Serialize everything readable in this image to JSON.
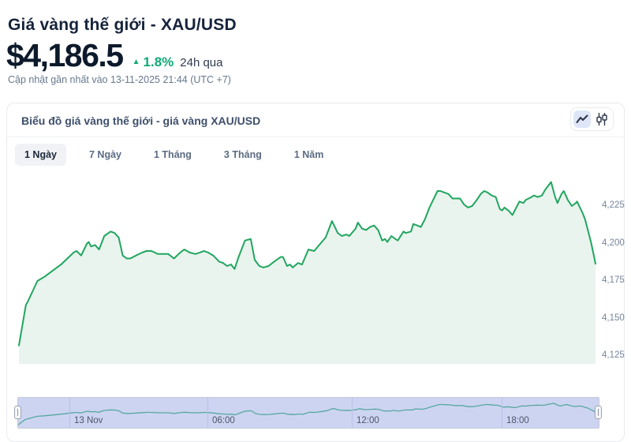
{
  "header": {
    "title": "Giá vàng thế giới - XAU/USD",
    "price": "$4,186.5",
    "change": "1.8%",
    "period": "24h qua",
    "updated": "Cập nhật gần nhất vào 13-11-2025 21:44 (UTC +7)"
  },
  "icons": {
    "up_arrow": "▲"
  },
  "chart_header": {
    "title": "Biểu đồ giá vàng thế giới - giá vàng XAU/USD"
  },
  "tabs": [
    {
      "id": "1d",
      "label": "1 Ngày",
      "active": true
    },
    {
      "id": "7d",
      "label": "7 Ngày",
      "active": false
    },
    {
      "id": "1m",
      "label": "1 Tháng",
      "active": false
    },
    {
      "id": "3m",
      "label": "3 Tháng",
      "active": false
    },
    {
      "id": "1y",
      "label": "1 Năm",
      "active": false
    }
  ],
  "colors": {
    "accent_green": "#10a974",
    "title_dark": "#16233b",
    "chart_line": "#21a55f",
    "chart_fill": "#e9f4ee",
    "navigator_bg": "#cdd4f1",
    "navigator_line": "#58a8a1",
    "navigator_grid": "#b9c0e4",
    "active_tab_bg": "#f1f2f5",
    "toggle_active_bg": "#dfe6f8",
    "icon_dark": "#2b3547"
  },
  "chart_data": {
    "type": "area",
    "title": "Biểu đồ giá vàng thế giới - giá vàng XAU/USD",
    "series_name": "XAU/USD",
    "xlabel": "",
    "ylabel": "USD",
    "grid": false,
    "y_axis_position": "right",
    "ylim": [
      4120,
      4245
    ],
    "y_ticks": [
      4125,
      4150,
      4175,
      4200,
      4225
    ],
    "x_axis_labels": [
      {
        "label": "13 Nov",
        "pos": 0.088
      },
      {
        "label": "06:00",
        "pos": 0.326
      },
      {
        "label": "12:00",
        "pos": 0.575
      },
      {
        "label": "18:00",
        "pos": 0.833
      }
    ],
    "points": [
      [
        0,
        4132
      ],
      [
        0.012,
        4159
      ],
      [
        0.015,
        4161
      ],
      [
        0.032,
        4175
      ],
      [
        0.045,
        4178
      ],
      [
        0.059,
        4182
      ],
      [
        0.073,
        4186
      ],
      [
        0.084,
        4190
      ],
      [
        0.095,
        4194
      ],
      [
        0.1,
        4195
      ],
      [
        0.108,
        4192
      ],
      [
        0.118,
        4200
      ],
      [
        0.121,
        4201
      ],
      [
        0.125,
        4198
      ],
      [
        0.132,
        4199
      ],
      [
        0.139,
        4196
      ],
      [
        0.148,
        4205
      ],
      [
        0.159,
        4208
      ],
      [
        0.166,
        4207
      ],
      [
        0.173,
        4204
      ],
      [
        0.18,
        4192
      ],
      [
        0.187,
        4190
      ],
      [
        0.193,
        4190
      ],
      [
        0.203,
        4192
      ],
      [
        0.214,
        4194
      ],
      [
        0.221,
        4195
      ],
      [
        0.23,
        4195
      ],
      [
        0.241,
        4193
      ],
      [
        0.25,
        4193
      ],
      [
        0.259,
        4193
      ],
      [
        0.269,
        4190
      ],
      [
        0.277,
        4193
      ],
      [
        0.283,
        4195
      ],
      [
        0.287,
        4196
      ],
      [
        0.296,
        4194
      ],
      [
        0.306,
        4193
      ],
      [
        0.314,
        4194
      ],
      [
        0.321,
        4195
      ],
      [
        0.328,
        4194
      ],
      [
        0.337,
        4192
      ],
      [
        0.347,
        4188
      ],
      [
        0.354,
        4187
      ],
      [
        0.361,
        4185
      ],
      [
        0.368,
        4186
      ],
      [
        0.374,
        4183
      ],
      [
        0.381,
        4191
      ],
      [
        0.392,
        4202
      ],
      [
        0.402,
        4203
      ],
      [
        0.409,
        4189
      ],
      [
        0.417,
        4185
      ],
      [
        0.424,
        4184
      ],
      [
        0.433,
        4185
      ],
      [
        0.443,
        4188
      ],
      [
        0.454,
        4191
      ],
      [
        0.458,
        4191
      ],
      [
        0.465,
        4185
      ],
      [
        0.47,
        4186
      ],
      [
        0.475,
        4184
      ],
      [
        0.484,
        4187
      ],
      [
        0.491,
        4186
      ],
      [
        0.502,
        4196
      ],
      [
        0.512,
        4195
      ],
      [
        0.523,
        4200
      ],
      [
        0.532,
        4204
      ],
      [
        0.543,
        4215
      ],
      [
        0.553,
        4207
      ],
      [
        0.56,
        4205
      ],
      [
        0.568,
        4206
      ],
      [
        0.573,
        4205
      ],
      [
        0.584,
        4210
      ],
      [
        0.588,
        4214
      ],
      [
        0.595,
        4210
      ],
      [
        0.602,
        4209
      ],
      [
        0.609,
        4211
      ],
      [
        0.616,
        4212
      ],
      [
        0.623,
        4209
      ],
      [
        0.63,
        4202
      ],
      [
        0.635,
        4203
      ],
      [
        0.639,
        4201
      ],
      [
        0.646,
        4205
      ],
      [
        0.653,
        4203
      ],
      [
        0.657,
        4202
      ],
      [
        0.667,
        4208
      ],
      [
        0.671,
        4207
      ],
      [
        0.68,
        4208
      ],
      [
        0.684,
        4213
      ],
      [
        0.691,
        4212
      ],
      [
        0.697,
        4211
      ],
      [
        0.704,
        4216
      ],
      [
        0.712,
        4224
      ],
      [
        0.726,
        4235
      ],
      [
        0.731,
        4235
      ],
      [
        0.738,
        4234
      ],
      [
        0.745,
        4233
      ],
      [
        0.752,
        4230
      ],
      [
        0.759,
        4230
      ],
      [
        0.765,
        4230
      ],
      [
        0.772,
        4226
      ],
      [
        0.779,
        4224
      ],
      [
        0.786,
        4225
      ],
      [
        0.794,
        4229
      ],
      [
        0.801,
        4233
      ],
      [
        0.807,
        4235
      ],
      [
        0.813,
        4234
      ],
      [
        0.82,
        4232
      ],
      [
        0.827,
        4231
      ],
      [
        0.834,
        4223
      ],
      [
        0.838,
        4222
      ],
      [
        0.842,
        4224
      ],
      [
        0.849,
        4222
      ],
      [
        0.856,
        4219
      ],
      [
        0.868,
        4228
      ],
      [
        0.875,
        4227
      ],
      [
        0.879,
        4229
      ],
      [
        0.889,
        4231
      ],
      [
        0.893,
        4232
      ],
      [
        0.9,
        4231
      ],
      [
        0.907,
        4232
      ],
      [
        0.913,
        4236
      ],
      [
        0.923,
        4241
      ],
      [
        0.93,
        4231
      ],
      [
        0.934,
        4227
      ],
      [
        0.941,
        4233
      ],
      [
        0.945,
        4235
      ],
      [
        0.952,
        4229
      ],
      [
        0.959,
        4225
      ],
      [
        0.966,
        4227
      ],
      [
        0.968,
        4228
      ],
      [
        0.978,
        4220
      ],
      [
        0.982,
        4216
      ],
      [
        0.986,
        4210
      ],
      [
        0.992,
        4201
      ],
      [
        0.996,
        4194
      ],
      [
        1,
        4186.5
      ]
    ]
  }
}
